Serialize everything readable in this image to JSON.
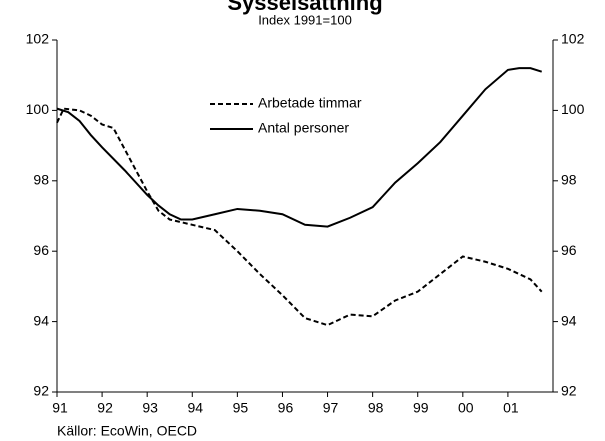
{
  "chart_data": {
    "type": "line",
    "title": "Sysselsättning",
    "subtitle": "Index 1991=100",
    "source": "Källor: EcoWin, OECD",
    "xlim": [
      1991,
      2002
    ],
    "xticks": [
      {
        "value": 1991,
        "label": "91"
      },
      {
        "value": 1992,
        "label": "92"
      },
      {
        "value": 1993,
        "label": "93"
      },
      {
        "value": 1994,
        "label": "94"
      },
      {
        "value": 1995,
        "label": "95"
      },
      {
        "value": 1996,
        "label": "96"
      },
      {
        "value": 1997,
        "label": "97"
      },
      {
        "value": 1998,
        "label": "98"
      },
      {
        "value": 1999,
        "label": "99"
      },
      {
        "value": 2000,
        "label": "00"
      },
      {
        "value": 2001,
        "label": "01"
      }
    ],
    "ylim": [
      92,
      102
    ],
    "yticks": [
      92,
      94,
      96,
      98,
      100,
      102
    ],
    "y2lim": [
      92,
      102
    ],
    "y2ticks": [
      92,
      94,
      96,
      98,
      100,
      102
    ],
    "series": [
      {
        "name": "Arbetade timmar",
        "color": "#000000",
        "dash": true,
        "x": [
          1991,
          1991.15,
          1991.5,
          1991.75,
          1992,
          1992.25,
          1992.5,
          1993,
          1993.25,
          1993.5,
          1994,
          1994.5,
          1995,
          1995.5,
          1996,
          1996.5,
          1997,
          1997.5,
          1998,
          1998.5,
          1999,
          1999.5,
          2000,
          2000.5,
          2001,
          2001.5,
          2001.75
        ],
        "values": [
          99.65,
          100.05,
          100.0,
          99.85,
          99.6,
          99.5,
          98.9,
          97.7,
          97.15,
          96.9,
          96.75,
          96.6,
          96.0,
          95.35,
          94.75,
          94.1,
          93.9,
          94.2,
          94.15,
          94.6,
          94.85,
          95.35,
          95.85,
          95.7,
          95.5,
          95.2,
          94.85
        ]
      },
      {
        "name": "Antal personer",
        "color": "#000000",
        "dash": false,
        "x": [
          1991,
          1991.25,
          1991.5,
          1991.75,
          1992,
          1992.5,
          1993,
          1993.25,
          1993.5,
          1993.75,
          1994,
          1994.5,
          1995,
          1995.5,
          1996,
          1996.5,
          1997,
          1997.5,
          1998,
          1998.5,
          1999,
          1999.5,
          2000,
          2000.5,
          2001,
          2001.25,
          2001.5,
          2001.75
        ],
        "values": [
          100.05,
          99.95,
          99.7,
          99.3,
          98.95,
          98.3,
          97.6,
          97.3,
          97.05,
          96.9,
          96.9,
          97.05,
          97.2,
          97.15,
          97.05,
          96.75,
          96.7,
          96.95,
          97.25,
          97.95,
          98.5,
          99.1,
          99.85,
          100.6,
          101.15,
          101.2,
          101.2,
          101.1
        ]
      }
    ]
  }
}
